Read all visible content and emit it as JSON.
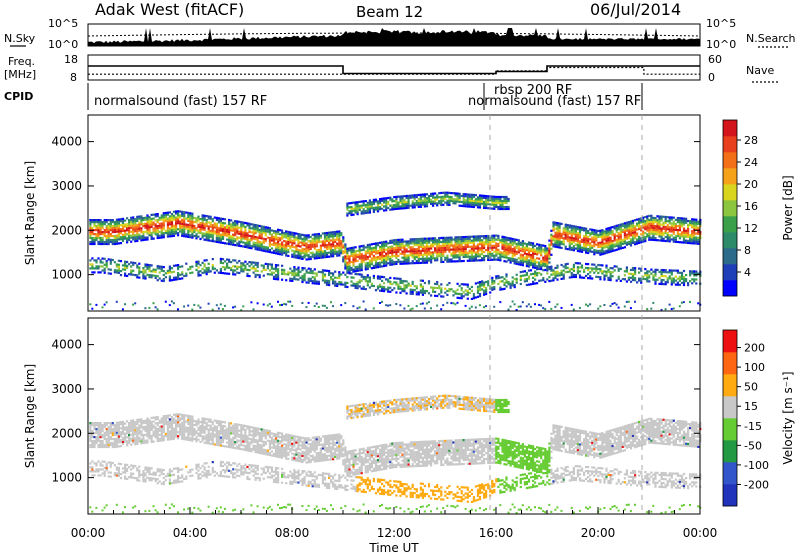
{
  "header": {
    "station": "Adak West (fitACF)",
    "beam": "Beam 12",
    "date": "06/Jul/2014"
  },
  "noise_panel": {
    "left_label": "N.Sky",
    "right_label": "N.Search",
    "left_ticks": [
      "10^5",
      "10^0"
    ],
    "right_ticks": [
      "10^5",
      "10^0"
    ]
  },
  "freq_panel": {
    "left_label_1": "Freq.",
    "left_label_2": "[MHz]",
    "left_ticks": [
      "18",
      "8"
    ],
    "right_ticks": [
      "60",
      "0"
    ],
    "right_label": "Nave",
    "freq_level": [
      {
        "from": 0,
        "to": 10,
        "mhz": 13.6
      },
      {
        "from": 10,
        "to": 16,
        "mhz": 10.6
      },
      {
        "from": 16,
        "to": 18,
        "mhz": 11.4
      },
      {
        "from": 18,
        "to": 24,
        "mhz": 13.6
      }
    ],
    "nave_level": [
      {
        "from": 0,
        "to": 16,
        "nave": 14
      },
      {
        "from": 16,
        "to": 18,
        "nave": 22
      },
      {
        "from": 18,
        "to": 21.8,
        "nave": 30
      },
      {
        "from": 21.8,
        "to": 24,
        "nave": 14
      }
    ]
  },
  "cpid": {
    "label": "CPID",
    "segments": [
      "normalsound (fast) 157 RF",
      "rbsp 200 RF",
      "normalsound (fast) 157 RF"
    ]
  },
  "chart_data": [
    {
      "type": "heatmap",
      "name": "power",
      "ylabel": "Slant Range [km]",
      "yticks": [
        1000,
        2000,
        3000,
        4000
      ],
      "ylim": [
        180,
        4600
      ],
      "xlim": [
        0,
        24
      ],
      "colorbar": {
        "label": "Power [dB]",
        "ticks": [
          "28",
          "24",
          "20",
          "16",
          "12",
          "8",
          "4"
        ],
        "colors": [
          "#0000ff",
          "#1f3fb8",
          "#2d6b8a",
          "#2e8b6a",
          "#3aa14a",
          "#8cc63f",
          "#d9d51e",
          "#f5a11a",
          "#f36f18",
          "#e8401c",
          "#d4141c"
        ]
      },
      "bands": [
        {
          "label": "main echo",
          "points": [
            [
              1.0,
              1950
            ],
            [
              3.5,
              2150
            ],
            [
              6.0,
              1900
            ],
            [
              8.5,
              1600
            ],
            [
              9.9,
              1700
            ],
            [
              10.1,
              1300
            ],
            [
              12.0,
              1500
            ],
            [
              16.0,
              1600
            ],
            [
              18.0,
              1350
            ],
            [
              18.2,
              1900
            ],
            [
              20.0,
              1700
            ],
            [
              22.0,
              2050
            ],
            [
              24.0,
              1950
            ]
          ]
        },
        {
          "label": "upper echo",
          "points": [
            [
              10.1,
              2450
            ],
            [
              12.0,
              2600
            ],
            [
              14.0,
              2700
            ],
            [
              16.0,
              2600
            ]
          ]
        },
        {
          "label": "lower echo",
          "points": [
            [
              0.5,
              1200
            ],
            [
              3.0,
              1000
            ],
            [
              5.0,
              1200
            ],
            [
              12.0,
              750
            ],
            [
              15.0,
              600
            ],
            [
              16.0,
              800
            ],
            [
              19.0,
              1100
            ],
            [
              22.0,
              950
            ],
            [
              24.0,
              900
            ]
          ]
        }
      ]
    },
    {
      "type": "heatmap",
      "name": "velocity",
      "ylabel": "Slant Range [km]",
      "yticks": [
        1000,
        2000,
        3000,
        4000
      ],
      "ylim": [
        180,
        4600
      ],
      "xlim": [
        0,
        24
      ],
      "xlabel": "Time UT",
      "xticks": [
        "00:00",
        "04:00",
        "08:00",
        "12:00",
        "16:00",
        "20:00",
        "00:00"
      ],
      "colorbar": {
        "label": "Velocity [m s⁻¹]",
        "ticks": [
          "200",
          "100",
          "50",
          "15",
          "-15",
          "-50",
          "-100",
          "-200"
        ],
        "colors": [
          "#2233bb",
          "#3355cc",
          "#229944",
          "#66cc33",
          "#c8c8c8",
          "#ffaa11",
          "#ff6611",
          "#ee1111"
        ]
      }
    }
  ]
}
